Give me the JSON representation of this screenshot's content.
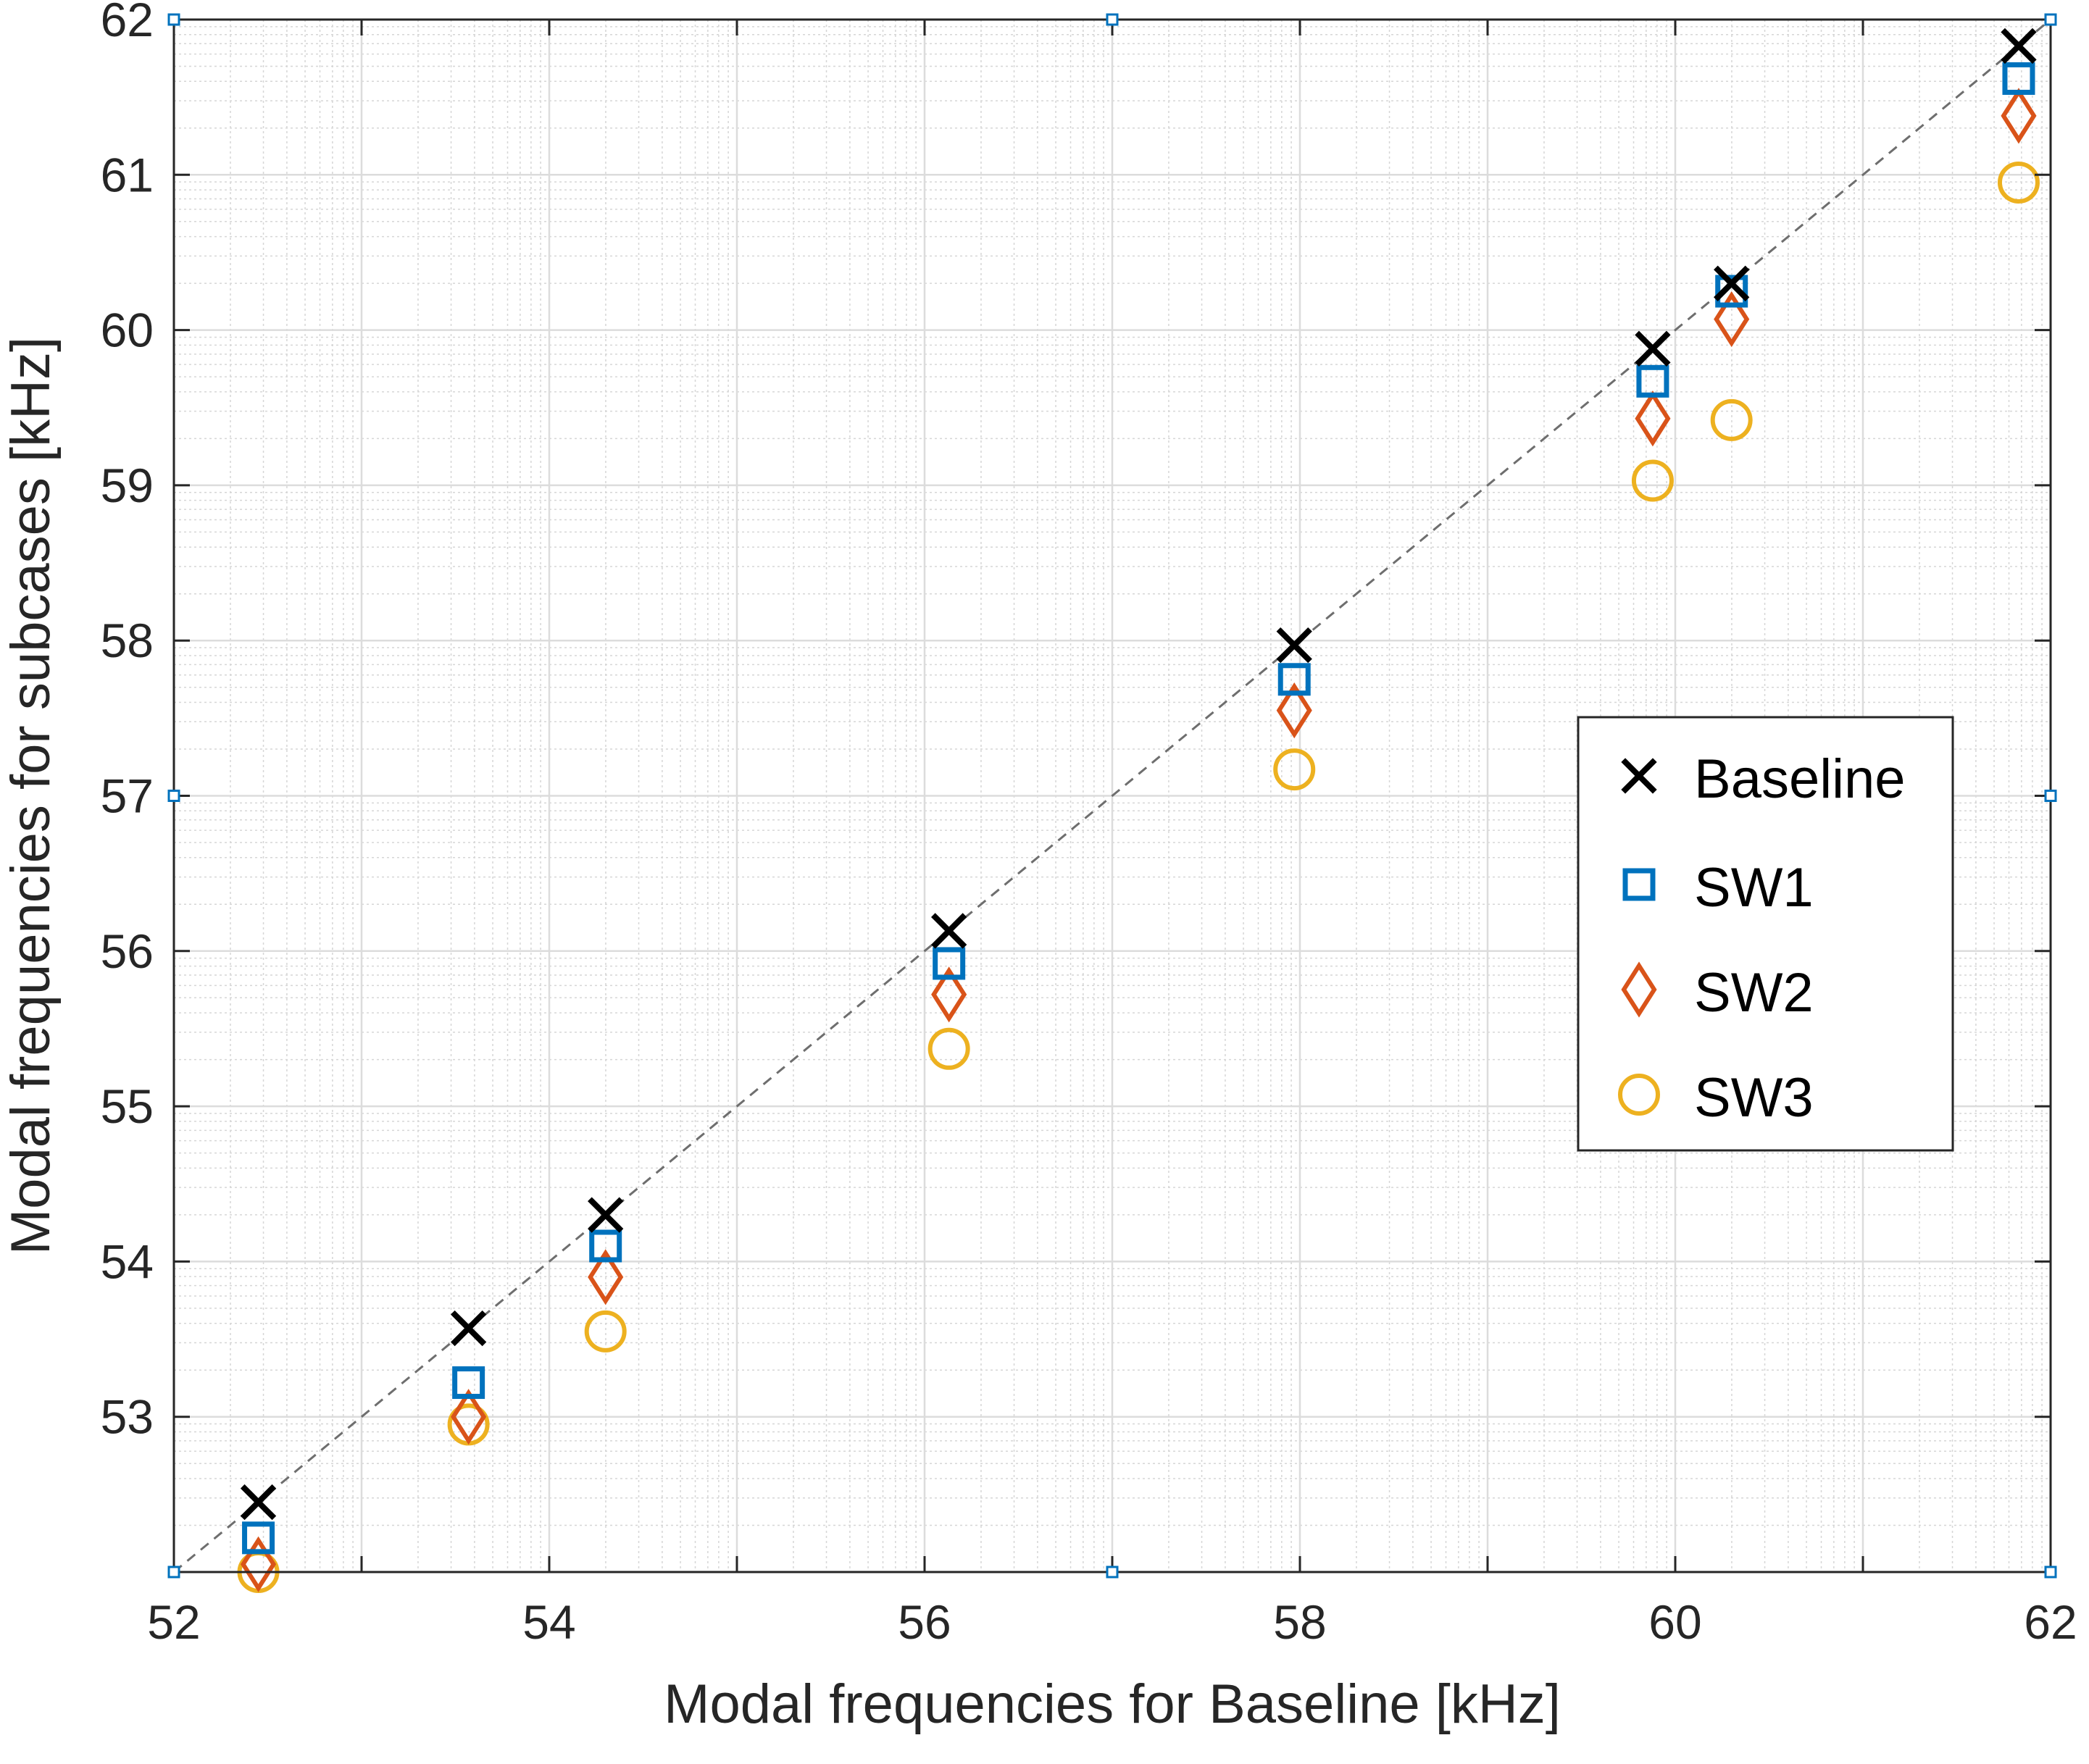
{
  "chart_data": {
    "type": "scatter",
    "title": "",
    "xlabel": "Modal frequencies for Baseline [kHz]",
    "ylabel": "Modal frequencies for subcases [kHz]",
    "xlim": [
      52,
      62
    ],
    "ylim": [
      52,
      62
    ],
    "xticks": [
      "52",
      "54",
      "56",
      "58",
      "60",
      "62"
    ],
    "xtick_values": [
      52,
      54,
      56,
      58,
      60,
      62
    ],
    "yticks": [
      "53",
      "54",
      "55",
      "56",
      "57",
      "58",
      "59",
      "60",
      "61",
      "62"
    ],
    "ytick_values": [
      53,
      54,
      55,
      56,
      57,
      58,
      59,
      60,
      61,
      62
    ],
    "grid": true,
    "minor_grid": true,
    "legend_position": "right",
    "reference_line": {
      "style": "dashed",
      "color": "#6e6e6e",
      "from": [
        52,
        52
      ],
      "to": [
        62,
        62
      ]
    },
    "corner_markers": [
      [
        52,
        52
      ],
      [
        52,
        57
      ],
      [
        52,
        62
      ],
      [
        57,
        52
      ],
      [
        57,
        62
      ],
      [
        62,
        52
      ],
      [
        62,
        57
      ],
      [
        62,
        62
      ]
    ],
    "x": [
      52.45,
      53.57,
      54.3,
      56.13,
      57.97,
      59.88,
      60.3,
      61.83
    ],
    "series": [
      {
        "name": "Baseline",
        "marker": "x",
        "color": "#000000",
        "values": [
          52.45,
          53.57,
          54.3,
          56.13,
          57.97,
          59.88,
          60.3,
          61.83
        ]
      },
      {
        "name": "SW1",
        "marker": "square",
        "color": "#0072BD",
        "values": [
          52.22,
          53.22,
          54.1,
          55.92,
          57.75,
          59.67,
          60.25,
          61.62
        ]
      },
      {
        "name": "SW2",
        "marker": "diamond",
        "color": "#D95319",
        "values": [
          52.05,
          53.0,
          53.9,
          55.72,
          57.55,
          59.43,
          60.07,
          61.38
        ]
      },
      {
        "name": "SW3",
        "marker": "circle",
        "color": "#EDB120",
        "values": [
          52.0,
          52.95,
          53.55,
          55.37,
          57.17,
          59.03,
          59.42,
          60.95
        ]
      }
    ]
  }
}
